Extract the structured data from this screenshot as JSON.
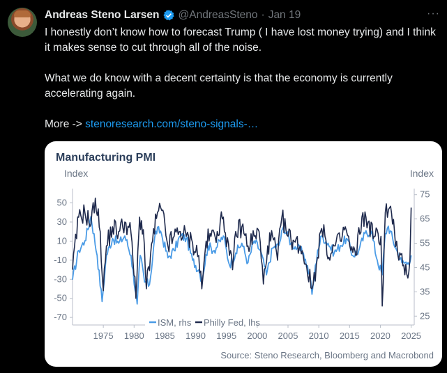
{
  "tweet": {
    "author_name": "Andreas Steno Larsen",
    "handle": "@AndreasSteno",
    "separator": "·",
    "date": "Jan 19",
    "more": "···",
    "paragraph1": "I honestly don’t know how to forecast Trump ( I have lost money trying) and I think it makes sense to cut through all of the noise.",
    "paragraph2": "What we do know with a decent certainty is that the economy is currently accelerating again.",
    "more_prefix": "More -> ",
    "link_text": "stenoresearch.com/steno-signals-…"
  },
  "chart_card": {
    "title": "Manufacturing PMI",
    "left_unit": "Index",
    "right_unit": "Index",
    "source": "Source: Steno Research, Bloomberg and Macrobond"
  },
  "colors": {
    "ism": "#4a9be6",
    "philly": "#1f2a4d",
    "link": "#1d9bf0",
    "verified": "#1d9bf0"
  },
  "chart_data": {
    "type": "line",
    "title": "Manufacturing PMI",
    "x_ticks": [
      "1975",
      "1980",
      "1985",
      "1990",
      "1995",
      "2000",
      "2005",
      "2010",
      "2015",
      "2020",
      "2025"
    ],
    "x_range": [
      1970,
      2025.5
    ],
    "left_axis": {
      "label": "Index",
      "ticks": [
        "50",
        "30",
        "10",
        "-10",
        "-30",
        "-50",
        "-70"
      ],
      "range": [
        -75,
        65
      ]
    },
    "right_axis": {
      "label": "Index",
      "ticks": [
        "75",
        "65",
        "55",
        "45",
        "35",
        "25"
      ],
      "range": [
        22.5,
        77.5
      ]
    },
    "legend": [
      "ISM, rhs",
      "Philly Fed, lhs"
    ],
    "legend_placement": "bottom-center",
    "series": [
      {
        "name": "Philly Fed, lhs",
        "axis": "left",
        "x": [
          1970.0,
          1971.0,
          1972.0,
          1973.0,
          1973.7,
          1974.5,
          1975.0,
          1975.5,
          1976.5,
          1977.5,
          1978.5,
          1979.5,
          1980.3,
          1980.9,
          1981.5,
          1982.0,
          1983.0,
          1983.8,
          1984.5,
          1985.5,
          1986.5,
          1987.5,
          1988.5,
          1989.5,
          1990.5,
          1991.0,
          1991.7,
          1992.5,
          1993.5,
          1994.5,
          1995.5,
          1996.0,
          1996.5,
          1997.5,
          1998.5,
          1999.5,
          2000.3,
          2001.0,
          2001.7,
          2002.5,
          2003.3,
          2004.0,
          2005.0,
          2006.0,
          2007.0,
          2008.0,
          2008.9,
          2009.6,
          2010.3,
          2011.0,
          2011.8,
          2012.5,
          2013.5,
          2014.3,
          2015.2,
          2016.0,
          2017.0,
          2018.0,
          2019.0,
          2020.1,
          2020.3,
          2020.8,
          2021.5,
          2022.3,
          2023.0,
          2023.8,
          2024.3,
          2024.8,
          2025.0
        ],
        "y": [
          -20,
          35,
          40,
          28,
          55,
          20,
          -42,
          5,
          25,
          20,
          30,
          18,
          -50,
          35,
          22,
          -40,
          10,
          40,
          42,
          5,
          15,
          20,
          15,
          8,
          -5,
          -40,
          10,
          15,
          20,
          35,
          -5,
          -20,
          20,
          25,
          5,
          15,
          20,
          -35,
          5,
          15,
          -10,
          35,
          15,
          10,
          5,
          -15,
          -40,
          -15,
          20,
          15,
          -10,
          5,
          10,
          25,
          0,
          -5,
          35,
          30,
          15,
          15,
          -58,
          40,
          45,
          20,
          -10,
          -15,
          -25,
          -10,
          45
        ]
      },
      {
        "name": "ISM, rhs",
        "axis": "right",
        "x": [
          1970.0,
          1971.0,
          1972.0,
          1973.0,
          1974.0,
          1974.8,
          1975.5,
          1976.5,
          1977.5,
          1978.5,
          1979.5,
          1980.5,
          1981.0,
          1981.7,
          1982.5,
          1983.5,
          1984.3,
          1985.5,
          1986.5,
          1987.5,
          1988.5,
          1989.5,
          1990.5,
          1991.0,
          1992.0,
          1993.0,
          1994.5,
          1995.5,
          1996.5,
          1997.5,
          1998.5,
          1999.5,
          2000.5,
          2001.5,
          2002.5,
          2003.5,
          2004.3,
          2005.5,
          2006.5,
          2007.5,
          2008.5,
          2008.9,
          2009.8,
          2010.5,
          2011.5,
          2012.5,
          2013.5,
          2014.5,
          2015.5,
          2016.5,
          2017.5,
          2018.5,
          2019.5,
          2020.3,
          2020.8,
          2021.3,
          2022.5,
          2023.5,
          2024.5,
          2025.0
        ],
        "y": [
          40,
          52,
          56,
          66,
          50,
          31,
          50,
          57,
          55,
          58,
          50,
          30,
          50,
          39,
          38,
          60,
          60,
          49,
          52,
          58,
          57,
          48,
          44,
          40,
          54,
          52,
          58,
          46,
          51,
          55,
          47,
          56,
          52,
          42,
          53,
          54,
          62,
          55,
          53,
          51,
          42,
          34,
          52,
          58,
          55,
          51,
          54,
          57,
          50,
          52,
          59,
          60,
          48,
          42,
          59,
          62,
          53,
          47,
          47,
          50
        ]
      }
    ]
  }
}
